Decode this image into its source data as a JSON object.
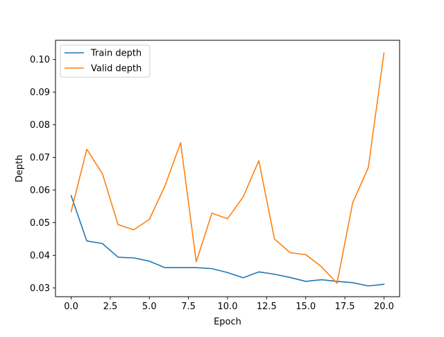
{
  "chart_data": {
    "type": "line",
    "title": "",
    "xlabel": "Epoch",
    "ylabel": "Depth",
    "xlim": [
      -1.0,
      21.0
    ],
    "ylim": [
      0.0273,
      0.1059
    ],
    "x_ticks": [
      0.0,
      2.5,
      5.0,
      7.5,
      10.0,
      12.5,
      15.0,
      17.5,
      20.0
    ],
    "x_tick_labels": [
      "0.0",
      "2.5",
      "5.0",
      "7.5",
      "10.0",
      "12.5",
      "15.0",
      "17.5",
      "20.0"
    ],
    "y_ticks": [
      0.03,
      0.04,
      0.05,
      0.06,
      0.07,
      0.08,
      0.09,
      0.1
    ],
    "y_tick_labels": [
      "0.03",
      "0.04",
      "0.05",
      "0.06",
      "0.07",
      "0.08",
      "0.09",
      "0.10"
    ],
    "grid": false,
    "legend_position": "top-left",
    "x": [
      0,
      1,
      2,
      3,
      4,
      5,
      6,
      7,
      8,
      9,
      10,
      11,
      12,
      13,
      14,
      15,
      16,
      17,
      18,
      19,
      20
    ],
    "series": [
      {
        "name": "Train depth",
        "color": "#1f77b4",
        "values": [
          0.0583,
          0.0444,
          0.0436,
          0.0394,
          0.0392,
          0.0382,
          0.0362,
          0.0362,
          0.0362,
          0.0359,
          0.0347,
          0.0331,
          0.0349,
          0.0342,
          0.0332,
          0.032,
          0.0325,
          0.032,
          0.0316,
          0.0306,
          0.0311
        ]
      },
      {
        "name": "Valid depth",
        "color": "#ff7f0e",
        "values": [
          0.0534,
          0.0725,
          0.065,
          0.0494,
          0.0478,
          0.051,
          0.0613,
          0.0745,
          0.038,
          0.0529,
          0.0512,
          0.0579,
          0.069,
          0.045,
          0.0408,
          0.0402,
          0.0365,
          0.0314,
          0.0561,
          0.0669,
          0.102
        ]
      }
    ]
  }
}
